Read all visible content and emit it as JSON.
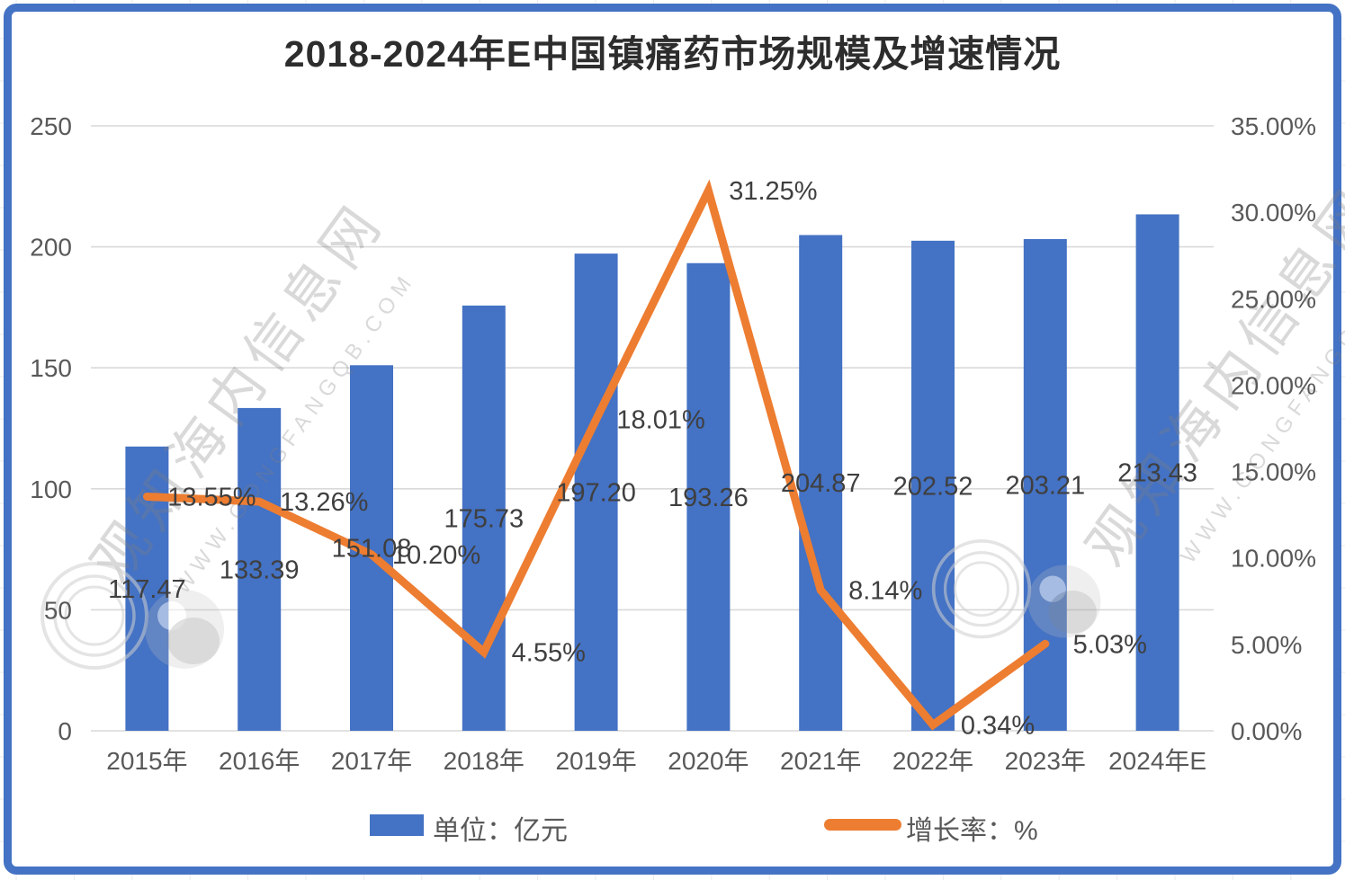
{
  "chart_data": {
    "type": "bar",
    "title": "2018-2024年E中国镇痛药市场规模及增速情况",
    "categories": [
      "2015年",
      "2016年",
      "2017年",
      "2018年",
      "2019年",
      "2020年",
      "2021年",
      "2022年",
      "2023年",
      "2024年E"
    ],
    "series": [
      {
        "name": "单位：亿元",
        "type": "bar",
        "axis": "left",
        "values": [
          117.47,
          133.39,
          151.08,
          175.73,
          197.2,
          193.26,
          204.87,
          202.52,
          203.21,
          213.43
        ],
        "color": "#4472C4"
      },
      {
        "name": "增长率：%",
        "type": "line",
        "axis": "right",
        "values": [
          13.55,
          13.26,
          10.2,
          4.55,
          18.01,
          31.25,
          8.14,
          0.34,
          5.03,
          null
        ],
        "color": "#ED7D31"
      }
    ],
    "left_axis": {
      "min": 0,
      "max": 250,
      "ticks": [
        "0",
        "50",
        "100",
        "150",
        "200",
        "250"
      ]
    },
    "right_axis": {
      "min": 0,
      "max": 35,
      "ticks": [
        "0.00%",
        "5.00%",
        "10.00%",
        "15.00%",
        "20.00%",
        "25.00%",
        "30.00%",
        "35.00%"
      ]
    },
    "legend_position": "bottom",
    "grid": "horizontal"
  },
  "watermark": {
    "site_name": "观知海内信息网",
    "site_url": "WWW.GONGFANGQB.COM"
  },
  "colors": {
    "bar": "#4472C4",
    "line": "#ED7D31",
    "frame": "#4472C4",
    "gridline": "#D9D9D9",
    "axis_text": "#595959",
    "data_label": "#3F3F3F",
    "title_text": "#2D2D2D",
    "sheet_grid": "#E7EAEE"
  }
}
